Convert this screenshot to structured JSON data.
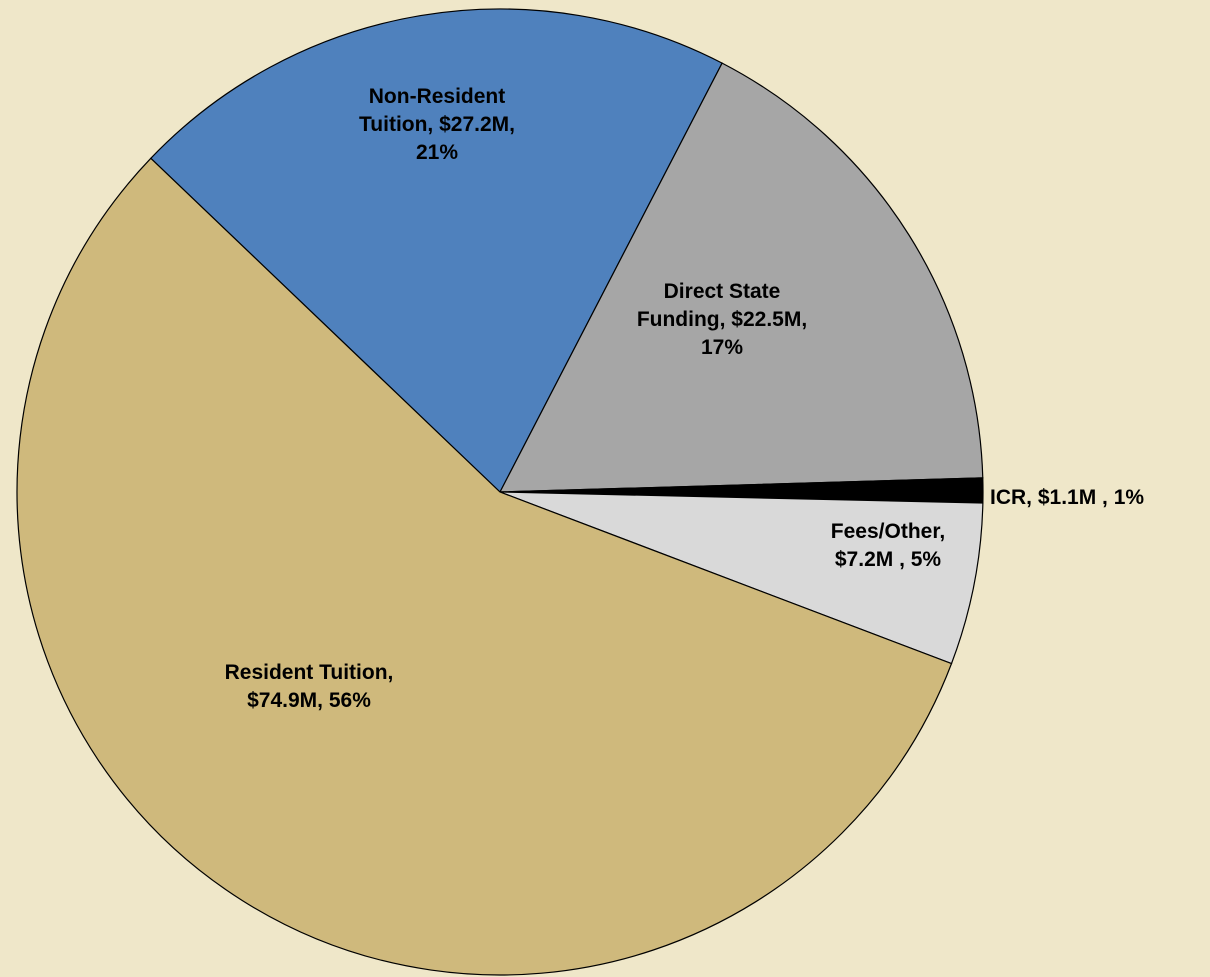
{
  "chart_data": {
    "type": "pie",
    "values": [
      27.2,
      22.5,
      1.1,
      7.2,
      74.9
    ],
    "value_labels": [
      [
        "Non-Resident",
        "Tuition, $27.2M,",
        "21%"
      ],
      [
        "Direct State",
        "Funding, $22.5M,",
        "17%"
      ],
      [
        "ICR, $1.1M , 1%"
      ],
      [
        "Fees/Other,",
        "$7.2M , 5%"
      ],
      [
        "Resident Tuition,",
        "$74.9M, 56%"
      ]
    ],
    "colors": [
      "#4f81bd",
      "#a6a6a6",
      "#000000",
      "#d9d9d9",
      "#cfb97c"
    ]
  }
}
